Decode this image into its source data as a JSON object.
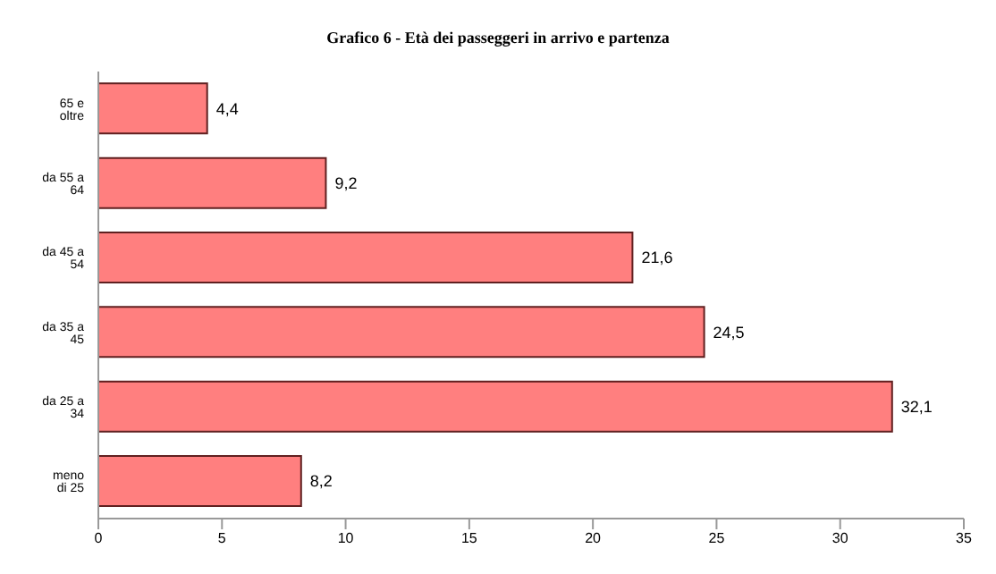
{
  "chart_data": {
    "type": "bar",
    "orientation": "horizontal",
    "title": "Grafico 6 - Età dei passeggeri in arrivo e partenza",
    "categories": [
      "65 e oltre",
      "da 55 a 64",
      "da 45 a 54",
      "da 35 a 45",
      "da 25 a 34",
      "meno di 25"
    ],
    "values": [
      4.4,
      9.2,
      21.6,
      24.5,
      32.1,
      8.2
    ],
    "value_labels": [
      "4,4",
      "9,2",
      "21,6",
      "24,5",
      "32,1",
      "8,2"
    ],
    "color": "#ff7f7f",
    "xlim": [
      0,
      35
    ],
    "xticks": [
      0,
      5,
      10,
      15,
      20,
      25,
      30,
      35
    ],
    "grid": false
  }
}
